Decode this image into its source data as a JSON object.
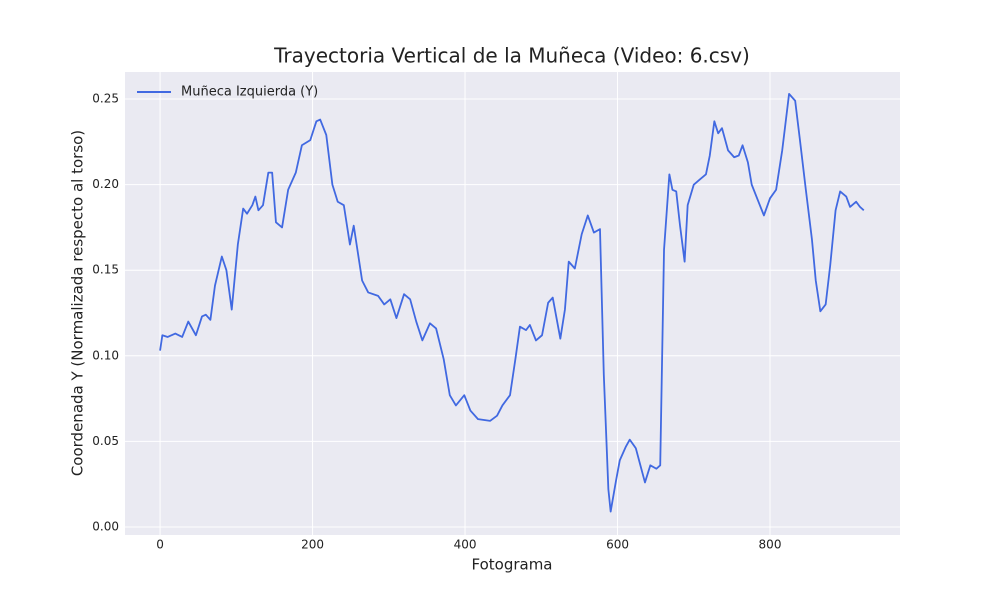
{
  "chart_data": {
    "type": "line",
    "title": "Trayectoria Vertical de la Muñeca (Video: 6.csv)",
    "x_label": "Fotograma",
    "y_label": "Coordenada Y (Normalizada respecto al torso)",
    "x": [
      0,
      3,
      10,
      20,
      29,
      37,
      47,
      55,
      60,
      66,
      72,
      81,
      87,
      94,
      102,
      109,
      114,
      121,
      125,
      129,
      135,
      142,
      147,
      152,
      160,
      168,
      178,
      186,
      197,
      205,
      210,
      218,
      226,
      233,
      241,
      249,
      254,
      265,
      273,
      286,
      294,
      302,
      310,
      320,
      328,
      336,
      344,
      354,
      362,
      372,
      380,
      388,
      399,
      407,
      417,
      433,
      442,
      449,
      459,
      466,
      472,
      480,
      485,
      493,
      501,
      509,
      515,
      525,
      531,
      536,
      544,
      553,
      561,
      569,
      577,
      582,
      588,
      591,
      598,
      603,
      611,
      616,
      624,
      630,
      636,
      643,
      651,
      656,
      661,
      668,
      672,
      677,
      682,
      688,
      692,
      700,
      708,
      716,
      721,
      727,
      732,
      737,
      745,
      753,
      759,
      764,
      771,
      776,
      784,
      792,
      800,
      808,
      816,
      825,
      833,
      839,
      847,
      855,
      860,
      866,
      873,
      879,
      886,
      892,
      900,
      905,
      913,
      918,
      923
    ],
    "series": [
      {
        "name": "Muñeca Izquierda (Y)",
        "color": "#4169e1",
        "values": [
          0.103,
          0.112,
          0.111,
          0.113,
          0.111,
          0.12,
          0.112,
          0.123,
          0.124,
          0.121,
          0.141,
          0.158,
          0.15,
          0.127,
          0.165,
          0.186,
          0.183,
          0.188,
          0.193,
          0.185,
          0.188,
          0.207,
          0.207,
          0.178,
          0.175,
          0.197,
          0.207,
          0.223,
          0.226,
          0.237,
          0.238,
          0.229,
          0.2,
          0.19,
          0.188,
          0.165,
          0.176,
          0.144,
          0.137,
          0.135,
          0.13,
          0.133,
          0.122,
          0.136,
          0.133,
          0.12,
          0.109,
          0.119,
          0.116,
          0.098,
          0.077,
          0.071,
          0.077,
          0.068,
          0.063,
          0.062,
          0.065,
          0.071,
          0.077,
          0.098,
          0.117,
          0.115,
          0.118,
          0.109,
          0.112,
          0.131,
          0.134,
          0.11,
          0.127,
          0.155,
          0.151,
          0.171,
          0.182,
          0.172,
          0.174,
          0.089,
          0.022,
          0.009,
          0.027,
          0.039,
          0.047,
          0.051,
          0.046,
          0.036,
          0.026,
          0.036,
          0.034,
          0.036,
          0.162,
          0.206,
          0.197,
          0.196,
          0.176,
          0.155,
          0.188,
          0.2,
          0.203,
          0.206,
          0.217,
          0.237,
          0.23,
          0.233,
          0.22,
          0.216,
          0.217,
          0.223,
          0.213,
          0.2,
          0.191,
          0.182,
          0.192,
          0.197,
          0.22,
          0.253,
          0.249,
          0.227,
          0.197,
          0.168,
          0.144,
          0.126,
          0.13,
          0.153,
          0.185,
          0.196,
          0.193,
          0.187,
          0.19,
          0.187,
          0.185
        ]
      }
    ],
    "xlim": [
      -46,
      970.5
    ],
    "ylim": [
      -0.0047,
      0.2658
    ],
    "xticks": [
      0,
      200,
      400,
      600,
      800
    ],
    "yticks": [
      {
        "value": 0,
        "label": "0.00"
      },
      0.05,
      {
        "value": 0.1,
        "label": "0.10"
      },
      0.15,
      {
        "value": 0.2,
        "label": "0.20"
      },
      0.25
    ],
    "grid": true,
    "legend": "upper left"
  }
}
